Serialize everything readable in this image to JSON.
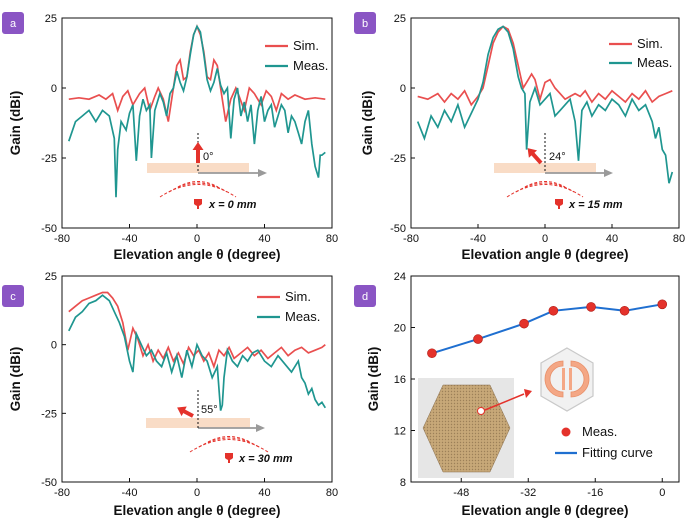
{
  "colors": {
    "sim": "#e94f4f",
    "meas": "#1f9690",
    "fit": "#1f6fd0",
    "marker": "#e4322b",
    "badge": "#8a55c4",
    "bar": "#f9dcc6",
    "axis_arrow": "#9a9a9a",
    "photo_bg": "#e6e6e6",
    "board": "#c7a878"
  },
  "chart_data": [
    {
      "id": "a",
      "type": "line",
      "panel_label": "a",
      "xlabel": "Elevation angle θ (degree)",
      "ylabel": "Gain (dBi)",
      "xlim": [
        -80,
        80
      ],
      "ylim": [
        -50,
        25
      ],
      "xticks": [
        "-80",
        "-40",
        "0",
        "40",
        "80"
      ],
      "yticks": [
        "-50",
        "-25",
        "0",
        "25"
      ],
      "legend": [
        "Sim.",
        "Meas."
      ],
      "annotation": {
        "angle_label": "0°",
        "offset_label": "x = 0 mm"
      },
      "series": [
        {
          "name": "Sim.",
          "x": [
            -76,
            -70,
            -64,
            -58,
            -54,
            -50,
            -47,
            -44,
            -41,
            -38,
            -34,
            -31,
            -28,
            -25,
            -23,
            -20,
            -17,
            -14,
            -12,
            -10,
            -8,
            -6,
            -4,
            -2,
            0,
            2,
            4,
            6,
            8,
            10,
            12,
            14,
            17,
            20,
            23,
            25,
            28,
            31,
            34,
            38,
            41,
            44,
            47,
            50,
            54,
            58,
            64,
            70,
            76
          ],
          "y": [
            -4,
            -3.5,
            -4,
            -2.5,
            -4,
            -2,
            -8,
            -3,
            -1,
            -6,
            -2,
            0,
            -8,
            -3,
            0,
            -4,
            -12,
            0,
            8,
            10,
            3,
            4,
            13,
            19,
            22,
            19,
            13,
            4,
            3,
            10,
            8,
            0,
            -12,
            -4,
            0,
            -3,
            -8,
            0,
            -2,
            -6,
            -1,
            -3,
            -8,
            -2,
            -4,
            -2.5,
            -4,
            -3.5,
            -4
          ]
        },
        {
          "name": "Meas.",
          "x": [
            -76,
            -72,
            -68,
            -64,
            -60,
            -56,
            -52,
            -49,
            -48,
            -47,
            -45,
            -42,
            -40,
            -38,
            -36,
            -34,
            -32,
            -30,
            -28,
            -27,
            -25,
            -22,
            -20,
            -18,
            -16,
            -14,
            -12,
            -10,
            -8,
            -6,
            -4,
            -2,
            0,
            2,
            4,
            6,
            8,
            10,
            12,
            14,
            16,
            18,
            20,
            22,
            24,
            26,
            28,
            30,
            32,
            34,
            36,
            38,
            40,
            42,
            44,
            46,
            48,
            50,
            52,
            54,
            56,
            58,
            60,
            62,
            64,
            66,
            68,
            70,
            72,
            73,
            74,
            76
          ],
          "y": [
            -19,
            -12,
            -10,
            -8,
            -12,
            -8,
            -10,
            -18,
            -39,
            -22,
            -12,
            -15,
            -9,
            -6,
            -26,
            -10,
            -4,
            -8,
            -6,
            -25,
            -8,
            -2,
            -5,
            -10,
            -2,
            0,
            6,
            2,
            -1,
            4,
            12,
            19,
            22,
            20,
            12,
            3,
            -1,
            2,
            7,
            1,
            -2,
            0,
            -18,
            -4,
            0,
            -10,
            -5,
            -12,
            -6,
            -20,
            -8,
            -3,
            -12,
            -8,
            -6,
            -14,
            -10,
            -6,
            -8,
            -16,
            -10,
            -12,
            -16,
            -20,
            -12,
            -8,
            -20,
            -28,
            -32,
            -24,
            -24,
            -23
          ]
        }
      ]
    },
    {
      "id": "b",
      "type": "line",
      "panel_label": "b",
      "xlabel": "Elevation angle θ (degree)",
      "ylabel": "Gain (dBi)",
      "xlim": [
        -80,
        80
      ],
      "ylim": [
        -50,
        25
      ],
      "xticks": [
        "-80",
        "-40",
        "0",
        "40",
        "80"
      ],
      "yticks": [
        "-50",
        "-25",
        "0",
        "25"
      ],
      "legend": [
        "Sim.",
        "Meas."
      ],
      "annotation": {
        "angle_label": "24°",
        "offset_label": "x = 15 mm"
      },
      "series": [
        {
          "name": "Sim.",
          "x": [
            -76,
            -70,
            -64,
            -60,
            -56,
            -52,
            -48,
            -44,
            -40,
            -37,
            -34,
            -31,
            -28,
            -25,
            -22,
            -19,
            -16,
            -13,
            -10,
            -8,
            -6,
            -3,
            0,
            3,
            6,
            9,
            12,
            15,
            18,
            21,
            24,
            28,
            32,
            36,
            40,
            44,
            48,
            52,
            56,
            60,
            64,
            68,
            72,
            76
          ],
          "y": [
            -3,
            -4,
            -2,
            -5,
            -2,
            -4,
            -1,
            -6,
            -3,
            0,
            8,
            16,
            20,
            22,
            21,
            16,
            8,
            0,
            3,
            5,
            3,
            -4,
            2,
            3,
            0,
            -2,
            -4,
            -3,
            -2,
            -3,
            -1,
            -5,
            -2,
            -4,
            -1,
            -3,
            -5,
            -2,
            -4,
            -1,
            -5,
            -3,
            -2,
            -1
          ]
        },
        {
          "name": "Meas.",
          "x": [
            -76,
            -72,
            -68,
            -64,
            -60,
            -56,
            -52,
            -48,
            -44,
            -40,
            -37,
            -34,
            -31,
            -28,
            -25,
            -22,
            -19,
            -16,
            -14,
            -12,
            -11,
            -9,
            -6,
            -3,
            0,
            3,
            6,
            9,
            12,
            15,
            18,
            20,
            22,
            25,
            28,
            32,
            36,
            40,
            44,
            48,
            52,
            56,
            60,
            64,
            66,
            68,
            70,
            72,
            74,
            76
          ],
          "y": [
            -12,
            -18,
            -10,
            -14,
            -8,
            -12,
            -6,
            -14,
            -9,
            -4,
            2,
            12,
            18,
            21,
            22,
            20,
            14,
            4,
            0,
            -2,
            -22,
            -5,
            0,
            -6,
            -4,
            -2,
            -10,
            -8,
            -6,
            -4,
            -12,
            -26,
            -8,
            -5,
            -10,
            -6,
            -8,
            -4,
            -6,
            -10,
            -4,
            -8,
            -6,
            -12,
            -18,
            -14,
            -22,
            -24,
            -34,
            -30
          ]
        }
      ]
    },
    {
      "id": "c",
      "type": "line",
      "panel_label": "c",
      "xlabel": "Elevation angle θ (degree)",
      "ylabel": "Gain (dBi)",
      "xlim": [
        -80,
        80
      ],
      "ylim": [
        -50,
        25
      ],
      "xticks": [
        "-80",
        "-40",
        "0",
        "40",
        "80"
      ],
      "yticks": [
        "-50",
        "-25",
        "0",
        "25"
      ],
      "legend": [
        "Sim.",
        "Meas."
      ],
      "annotation": {
        "angle_label": "55°",
        "offset_label": "x = 30 mm"
      },
      "series": [
        {
          "name": "Sim.",
          "x": [
            -76,
            -72,
            -68,
            -64,
            -60,
            -56,
            -53,
            -50,
            -47,
            -44,
            -41,
            -38,
            -35,
            -32,
            -29,
            -26,
            -23,
            -20,
            -17,
            -14,
            -11,
            -8,
            -5,
            -2,
            1,
            4,
            7,
            10,
            13,
            16,
            19,
            22,
            26,
            30,
            34,
            38,
            42,
            46,
            50,
            54,
            58,
            62,
            66,
            70,
            74,
            76
          ],
          "y": [
            12,
            14,
            16,
            17,
            18,
            19,
            19,
            17,
            14,
            8,
            -2,
            6,
            2,
            -4,
            0,
            -6,
            -2,
            -5,
            -1,
            -6,
            -3,
            -7,
            -1,
            -4,
            -2,
            -6,
            -3,
            -8,
            -2,
            -4,
            -1,
            -5,
            -3,
            -1,
            -4,
            -2,
            -5,
            -3,
            -1,
            -4,
            -2,
            -1,
            -3,
            -2,
            -1,
            0
          ]
        },
        {
          "name": "Meas.",
          "x": [
            -76,
            -72,
            -68,
            -64,
            -60,
            -56,
            -52,
            -49,
            -46,
            -43,
            -40,
            -38,
            -36,
            -33,
            -30,
            -27,
            -24,
            -21,
            -18,
            -15,
            -12,
            -9,
            -6,
            -3,
            0,
            3,
            6,
            9,
            12,
            14,
            15,
            16,
            18,
            21,
            24,
            27,
            30,
            33,
            36,
            40,
            44,
            48,
            52,
            56,
            60,
            62,
            64,
            66,
            68,
            70,
            72,
            74,
            76
          ],
          "y": [
            5,
            10,
            12,
            15,
            16,
            18,
            16,
            12,
            8,
            3,
            -6,
            -10,
            4,
            0,
            -4,
            -2,
            -6,
            -8,
            -3,
            -10,
            -4,
            -12,
            -2,
            -8,
            0,
            -4,
            -6,
            -12,
            -8,
            -24,
            -22,
            -12,
            -2,
            -6,
            -8,
            -4,
            -6,
            -3,
            -2,
            -6,
            -8,
            -4,
            -7,
            -10,
            -6,
            -12,
            -14,
            -18,
            -16,
            -20,
            -22,
            -21,
            -23
          ]
        }
      ]
    },
    {
      "id": "d",
      "type": "line",
      "panel_label": "d",
      "xlabel": "Elevation angle θ (degree)",
      "ylabel": "Gain (dBi)",
      "xlim": [
        -60,
        4
      ],
      "ylim": [
        8,
        24
      ],
      "xticks": [
        "-48",
        "-32",
        "-16",
        "0"
      ],
      "xtick_values": [
        -48,
        -32,
        -16,
        0
      ],
      "yticks": [
        "8",
        "12",
        "16",
        "20",
        "24"
      ],
      "legend": [
        "Meas.",
        "Fitting curve"
      ],
      "series": [
        {
          "name": "Meas.",
          "x": [
            -55,
            -44,
            -33,
            -26,
            -17,
            -9,
            0
          ],
          "y": [
            18,
            19.1,
            20.3,
            21.3,
            21.6,
            21.3,
            21.8
          ]
        }
      ]
    }
  ]
}
